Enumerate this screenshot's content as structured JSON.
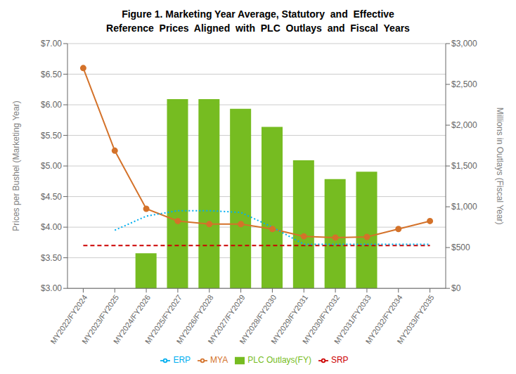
{
  "chart_data": {
    "type": "bar",
    "title": "Figure 1. Marketing Year Average, Statutory  and  Effective",
    "subtitle": "Reference  Prices  Aligned  with  PLC  Outlays  and  Fiscal  Years",
    "categories": [
      "MY2022/FY2024",
      "MY2023/FY2025",
      "MY2024/FY2026",
      "MY2025/FY2027",
      "MY2026/FY2028",
      "MY2027/FY2029",
      "MY2028/FY2030",
      "MY2029/FY2031",
      "MY2030/FY2032",
      "MY2031/FY2033",
      "MY2032/FY2034",
      "MY2033/FY2035"
    ],
    "series": [
      {
        "name": "PLC Outlays(FY)",
        "type": "bar",
        "axis": "y2",
        "color": "#76BC21",
        "values": [
          0,
          0,
          430,
          2320,
          2320,
          2200,
          1980,
          1570,
          1340,
          1430,
          0,
          0
        ]
      },
      {
        "name": "MYA",
        "type": "line",
        "color": "#D4722A",
        "marker": "circle",
        "line_style": "solid",
        "values": [
          6.6,
          5.25,
          4.3,
          4.1,
          4.05,
          4.05,
          3.97,
          3.85,
          3.83,
          3.84,
          3.97,
          4.1
        ]
      },
      {
        "name": "SRP",
        "type": "line",
        "color": "#CC0000",
        "marker": "none",
        "line_style": "dashed",
        "values": [
          3.7,
          3.7,
          3.7,
          3.7,
          3.7,
          3.7,
          3.7,
          3.7,
          3.7,
          3.7,
          3.7,
          3.7
        ]
      },
      {
        "name": "ERP",
        "type": "line",
        "color": "#00AEEF",
        "marker": "none",
        "line_style": "dotted",
        "values": [
          null,
          3.95,
          4.18,
          4.27,
          4.27,
          4.24,
          4.0,
          3.72,
          3.72,
          3.72,
          3.72,
          3.72
        ]
      }
    ],
    "ylabel": "Prices per Bushel (Marketing Year)",
    "y2label": "Millions in Outlays (Fiscal Year)",
    "ylim": [
      3.0,
      7.0
    ],
    "yticks": [
      {
        "value": 3.0,
        "label": "$3.00"
      },
      {
        "value": 3.5,
        "label": "$3.50"
      },
      {
        "value": 4.0,
        "label": "$4.00"
      },
      {
        "value": 4.5,
        "label": "$4.50"
      },
      {
        "value": 5.0,
        "label": "$5.00"
      },
      {
        "value": 5.5,
        "label": "$5.50"
      },
      {
        "value": 6.0,
        "label": "$6.00"
      },
      {
        "value": 6.5,
        "label": "$6.50"
      },
      {
        "value": 7.0,
        "label": "$7.00"
      }
    ],
    "y2lim": [
      0,
      3000
    ],
    "y2ticks": [
      {
        "value": 0,
        "label": "$0"
      },
      {
        "value": 500,
        "label": "$500"
      },
      {
        "value": 1000,
        "label": "$1,000"
      },
      {
        "value": 1500,
        "label": "$1,500"
      },
      {
        "value": 2000,
        "label": "$2,000"
      },
      {
        "value": 2500,
        "label": "$2,500"
      },
      {
        "value": 3000,
        "label": "$3,000"
      }
    ],
    "grid": true,
    "legend": "bottom"
  }
}
